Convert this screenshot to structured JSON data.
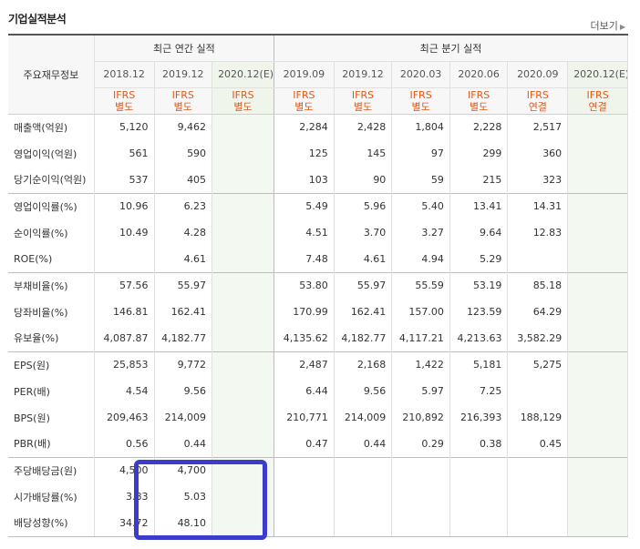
{
  "section_title": "기업실적분석",
  "more_label": "더보기",
  "header": {
    "row_head": "주요재무정보",
    "annual_group": "최근 연간 실적",
    "quarter_group": "최근 분기 실적",
    "annual_dates": [
      "2018.12",
      "2019.12",
      "2020.12(E)"
    ],
    "quarter_dates": [
      "2019.09",
      "2019.12",
      "2020.03",
      "2020.06",
      "2020.09",
      "2020.12(E)"
    ],
    "annual_ifrs": [
      [
        "IFRS",
        "별도"
      ],
      [
        "IFRS",
        "별도"
      ],
      [
        "IFRS",
        "별도"
      ]
    ],
    "quarter_ifrs": [
      [
        "IFRS",
        "별도"
      ],
      [
        "IFRS",
        "별도"
      ],
      [
        "IFRS",
        "별도"
      ],
      [
        "IFRS",
        "별도"
      ],
      [
        "IFRS",
        "연결"
      ],
      [
        "IFRS",
        "연결"
      ]
    ]
  },
  "rows": [
    {
      "label": "매출액(억원)",
      "annual": [
        "5,120",
        "9,462",
        ""
      ],
      "quarter": [
        "2,284",
        "2,428",
        "1,804",
        "2,228",
        "2,517",
        ""
      ]
    },
    {
      "label": "영업이익(억원)",
      "annual": [
        "561",
        "590",
        ""
      ],
      "quarter": [
        "125",
        "145",
        "97",
        "299",
        "360",
        ""
      ]
    },
    {
      "label": "당기순이익(억원)",
      "annual": [
        "537",
        "405",
        ""
      ],
      "quarter": [
        "103",
        "90",
        "59",
        "215",
        "323",
        ""
      ]
    },
    {
      "label": "영업이익률(%)",
      "annual": [
        "10.96",
        "6.23",
        ""
      ],
      "quarter": [
        "5.49",
        "5.96",
        "5.40",
        "13.41",
        "14.31",
        ""
      ]
    },
    {
      "label": "순이익률(%)",
      "annual": [
        "10.49",
        "4.28",
        ""
      ],
      "quarter": [
        "4.51",
        "3.70",
        "3.27",
        "9.64",
        "12.83",
        ""
      ]
    },
    {
      "label": "ROE(%)",
      "annual": [
        "",
        "4.61",
        ""
      ],
      "quarter": [
        "7.48",
        "4.61",
        "4.94",
        "5.29",
        "",
        ""
      ]
    },
    {
      "label": "부채비율(%)",
      "annual": [
        "57.56",
        "55.97",
        ""
      ],
      "quarter": [
        "53.80",
        "55.97",
        "55.59",
        "53.19",
        "85.18",
        ""
      ]
    },
    {
      "label": "당좌비율(%)",
      "annual": [
        "146.81",
        "162.41",
        ""
      ],
      "quarter": [
        "170.99",
        "162.41",
        "157.00",
        "123.59",
        "64.29",
        ""
      ]
    },
    {
      "label": "유보율(%)",
      "annual": [
        "4,087.87",
        "4,182.77",
        ""
      ],
      "quarter": [
        "4,135.62",
        "4,182.77",
        "4,117.21",
        "4,213.63",
        "3,582.29",
        ""
      ]
    },
    {
      "label": "EPS(원)",
      "annual": [
        "25,853",
        "9,772",
        ""
      ],
      "quarter": [
        "2,487",
        "2,168",
        "1,422",
        "5,181",
        "5,275",
        ""
      ]
    },
    {
      "label": "PER(배)",
      "annual": [
        "4.54",
        "9.56",
        ""
      ],
      "quarter": [
        "6.44",
        "9.56",
        "5.97",
        "7.25",
        "",
        ""
      ]
    },
    {
      "label": "BPS(원)",
      "annual": [
        "209,463",
        "214,009",
        ""
      ],
      "quarter": [
        "210,771",
        "214,009",
        "210,892",
        "216,393",
        "188,129",
        ""
      ]
    },
    {
      "label": "PBR(배)",
      "annual": [
        "0.56",
        "0.44",
        ""
      ],
      "quarter": [
        "0.47",
        "0.44",
        "0.29",
        "0.38",
        "0.45",
        ""
      ]
    },
    {
      "label": "주당배당금(원)",
      "annual": [
        "4,500",
        "4,700",
        ""
      ],
      "quarter": [
        "",
        "",
        "",
        "",
        "",
        ""
      ]
    },
    {
      "label": "시가배당률(%)",
      "annual": [
        "3.83",
        "5.03",
        ""
      ],
      "quarter": [
        "",
        "",
        "",
        "",
        "",
        ""
      ]
    },
    {
      "label": "배당성향(%)",
      "annual": [
        "34.72",
        "48.10",
        ""
      ],
      "quarter": [
        "",
        "",
        "",
        "",
        "",
        ""
      ]
    }
  ],
  "group_starts": [
    0,
    3,
    6,
    9,
    13
  ],
  "highlight_color": "#3b3bcc"
}
